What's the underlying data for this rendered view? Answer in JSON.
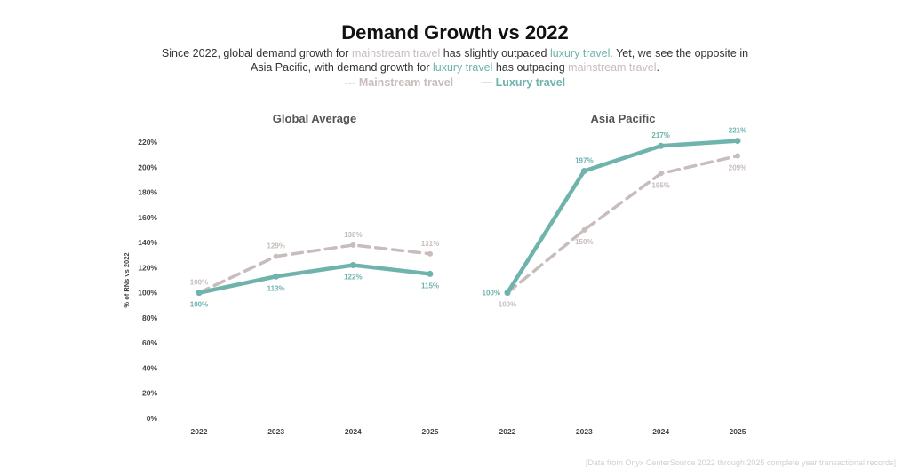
{
  "header": {
    "title": "Demand Growth vs 2022",
    "subtitle_parts": [
      {
        "text": "Since 2022, global demand growth for ",
        "style": "plain"
      },
      {
        "text": "mainstream travel",
        "style": "main"
      },
      {
        "text": " has slightly outpaced ",
        "style": "plain"
      },
      {
        "text": "luxury travel.",
        "style": "lux"
      },
      {
        "text": " Yet, we see the opposite in Asia Pacific, with demand growth for ",
        "style": "plain"
      },
      {
        "text": "luxury travel",
        "style": "lux"
      },
      {
        "text": " has outpacing ",
        "style": "plain"
      },
      {
        "text": "mainstream travel",
        "style": "main"
      },
      {
        "text": ".",
        "style": "plain"
      }
    ]
  },
  "legend": {
    "mainstream": {
      "symbol": "---",
      "label": "Mainstream travel"
    },
    "luxury": {
      "symbol": "—",
      "label": "Luxury travel"
    }
  },
  "colors": {
    "mainstream": "#c8bcbc",
    "luxury": "#6fb3ad",
    "axis_text": "#555555"
  },
  "footer": "[Data from Onyx CenterSource 2022 through 2025 complete year transactional records]",
  "chart_data": [
    {
      "type": "line",
      "title": "Global Average",
      "categories": [
        "2022",
        "2023",
        "2024",
        "2025"
      ],
      "ylabel": "% of RNs vs 2022",
      "xlabel": "",
      "ylim": [
        0,
        220
      ],
      "yticks": [
        "0%",
        "20%",
        "40%",
        "60%",
        "80%",
        "100%",
        "120%",
        "140%",
        "160%",
        "180%",
        "200%",
        "220%"
      ],
      "ytick_values": [
        0,
        20,
        40,
        60,
        80,
        100,
        120,
        140,
        160,
        180,
        200,
        220
      ],
      "grid": false,
      "series": [
        {
          "name": "Mainstream travel",
          "style": "dashed",
          "values": [
            100,
            129,
            138,
            131
          ],
          "labels": [
            "100%",
            "129%",
            "138%",
            "131%"
          ],
          "label_pos": [
            "above",
            "above",
            "above",
            "above"
          ]
        },
        {
          "name": "Luxury travel",
          "style": "solid",
          "values": [
            100,
            113,
            122,
            115
          ],
          "labels": [
            "100%",
            "113%",
            "122%",
            "115%"
          ],
          "label_pos": [
            "below",
            "below",
            "below",
            "below"
          ]
        }
      ]
    },
    {
      "type": "line",
      "title": "Asia Pacific",
      "categories": [
        "2022",
        "2023",
        "2024",
        "2025"
      ],
      "ylim": [
        0,
        220
      ],
      "grid": false,
      "series": [
        {
          "name": "Mainstream travel",
          "style": "dashed",
          "values": [
            100,
            150,
            195,
            209
          ],
          "labels": [
            "100%",
            "150%",
            "195%",
            "209%"
          ],
          "label_pos": [
            "below",
            "below",
            "below",
            "below"
          ]
        },
        {
          "name": "Luxury travel",
          "style": "solid",
          "values": [
            100,
            197,
            217,
            221
          ],
          "labels": [
            "100%",
            "197%",
            "217%",
            "221%"
          ],
          "label_pos": [
            "left",
            "above",
            "above",
            "above"
          ]
        }
      ]
    }
  ]
}
